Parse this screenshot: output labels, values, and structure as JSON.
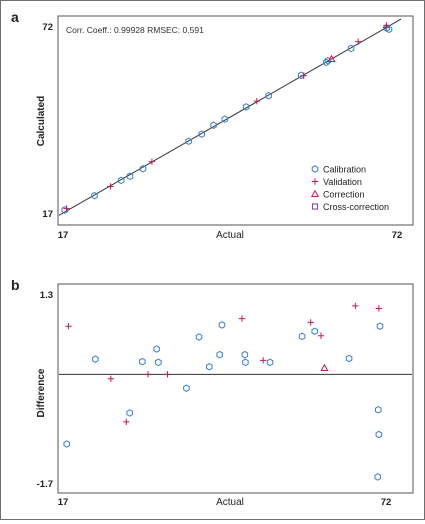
{
  "colors": {
    "calibration": "#3b7fd6",
    "validation": "#c2185b",
    "correction": "#c2185b",
    "cross_correction": "#7b3fa8",
    "line": "#333333"
  },
  "chart_data": [
    {
      "type": "scatter",
      "panel_label": "a",
      "title": "Corr. Coeff.: 0.99928  RMSEC: 0.591",
      "xlabel": "Actual",
      "ylabel": "Calculated",
      "xlim": [
        17,
        72
      ],
      "ylim": [
        17,
        72
      ],
      "xticks": [
        "17",
        "72"
      ],
      "yticks": [
        "17",
        "72"
      ],
      "legend_position": "bottom-right",
      "reference_line": {
        "from": [
          17,
          17
        ],
        "to": [
          72,
          72
        ]
      },
      "series": [
        {
          "name": "Calibration",
          "marker": "hexagon",
          "points": [
            [
              17.3,
              17.9
            ],
            [
              22.3,
              22.1
            ],
            [
              26.8,
              26.6
            ],
            [
              28.3,
              27.8
            ],
            [
              30.5,
              30.0
            ],
            [
              38.2,
              38.1
            ],
            [
              40.4,
              40.2
            ],
            [
              42.4,
              42.8
            ],
            [
              44.3,
              44.6
            ],
            [
              47.9,
              48.2
            ],
            [
              51.7,
              51.5
            ],
            [
              57.2,
              57.5
            ],
            [
              61.4,
              61.3
            ],
            [
              61.7,
              61.8
            ],
            [
              65.6,
              65.4
            ],
            [
              71.6,
              71.4
            ],
            [
              72.0,
              71.0
            ]
          ]
        },
        {
          "name": "Validation",
          "marker": "plus",
          "points": [
            [
              17.6,
              18.3
            ],
            [
              25.0,
              24.8
            ],
            [
              32.0,
              32.1
            ],
            [
              49.7,
              49.9
            ],
            [
              57.6,
              57.4
            ],
            [
              66.8,
              67.4
            ],
            [
              71.5,
              71.6
            ],
            [
              71.6,
              72.2
            ]
          ]
        },
        {
          "name": "Correction",
          "marker": "triangle",
          "points": [
            [
              62.3,
              62.3
            ]
          ]
        },
        {
          "name": "Cross-correction",
          "marker": "square",
          "points": []
        }
      ]
    },
    {
      "type": "scatter",
      "panel_label": "b",
      "xlabel": "Actual",
      "ylabel": "Difference",
      "xlim": [
        17,
        72
      ],
      "ylim": [
        -1.7,
        1.3
      ],
      "xticks": [
        "17",
        "72"
      ],
      "yticks": [
        "1.3",
        "-1.7"
      ],
      "reference_line": {
        "from": [
          17,
          0
        ],
        "to": [
          72,
          0
        ]
      },
      "series": [
        {
          "name": "Calibration",
          "marker": "hexagon",
          "points": [
            [
              17.3,
              -1.1
            ],
            [
              22.3,
              0.24
            ],
            [
              28.3,
              -0.61
            ],
            [
              30.5,
              0.2
            ],
            [
              33.0,
              0.4
            ],
            [
              33.3,
              0.19
            ],
            [
              38.2,
              -0.22
            ],
            [
              40.4,
              0.59
            ],
            [
              42.2,
              0.12
            ],
            [
              44.0,
              0.31
            ],
            [
              44.4,
              0.78
            ],
            [
              48.4,
              0.31
            ],
            [
              48.5,
              0.19
            ],
            [
              52.8,
              0.19
            ],
            [
              58.4,
              0.6
            ],
            [
              60.6,
              0.68
            ],
            [
              66.6,
              0.25
            ],
            [
              71.6,
              -1.62
            ],
            [
              71.7,
              -0.56
            ],
            [
              71.8,
              -0.95
            ],
            [
              72.0,
              0.76
            ]
          ]
        },
        {
          "name": "Validation",
          "marker": "plus",
          "points": [
            [
              17.6,
              0.76
            ],
            [
              25.0,
              -0.07
            ],
            [
              27.7,
              -0.75
            ],
            [
              31.5,
              0.0
            ],
            [
              34.9,
              0.0
            ],
            [
              47.9,
              0.88
            ],
            [
              51.6,
              0.22
            ],
            [
              59.9,
              0.82
            ],
            [
              61.7,
              0.61
            ],
            [
              67.7,
              1.08
            ],
            [
              71.8,
              1.04
            ]
          ]
        },
        {
          "name": "Correction",
          "marker": "triangle",
          "points": [
            [
              62.3,
              0.1
            ]
          ]
        },
        {
          "name": "Cross-correction",
          "marker": "square",
          "points": []
        }
      ]
    }
  ]
}
